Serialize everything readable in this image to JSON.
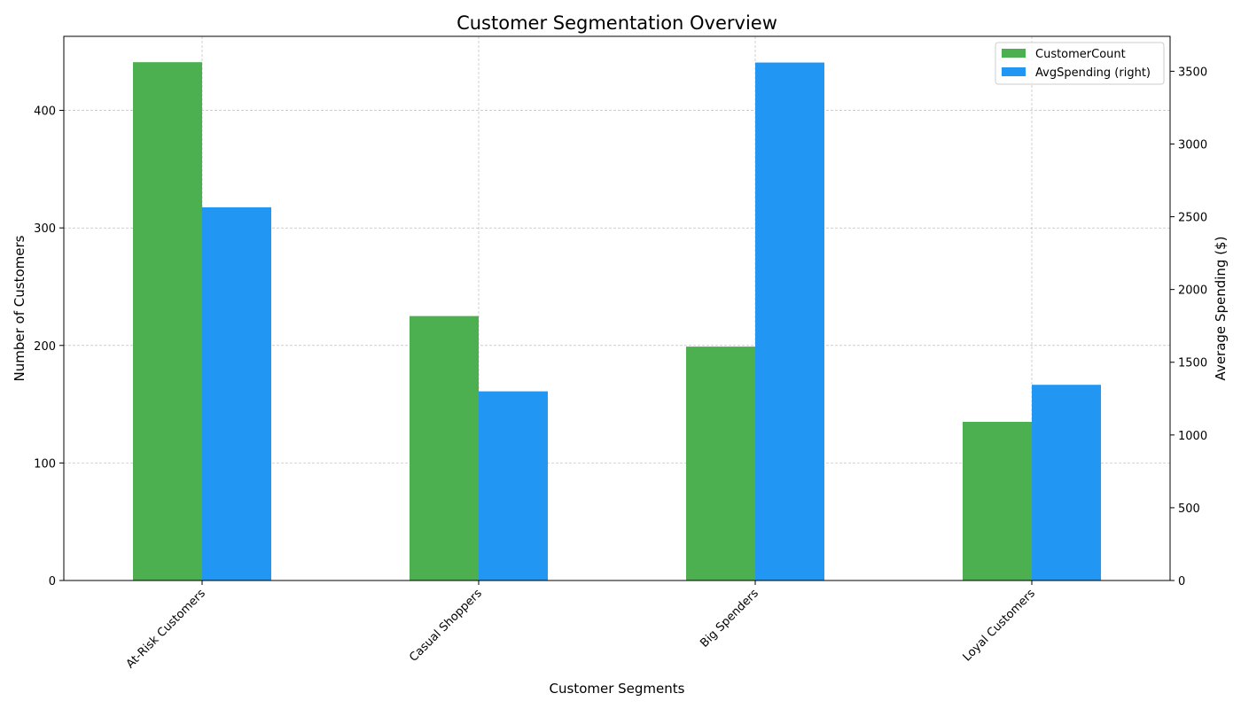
{
  "chart_data": {
    "type": "bar",
    "title": "Customer Segmentation Overview",
    "xlabel": "Customer Segments",
    "ylabel": "Number of Customers",
    "y2label": "Average Spending ($)",
    "categories": [
      "At-Risk Customers",
      "Casual Shoppers",
      "Big Spenders",
      "Loyal Customers"
    ],
    "series": [
      {
        "name": "CustomerCount",
        "axis": "left",
        "color": "#4caf50",
        "values": [
          441,
          225,
          199,
          135
        ]
      },
      {
        "name": "AvgSpending (right)",
        "axis": "right",
        "color": "#2196f3",
        "values": [
          2565,
          1300,
          3560,
          1345
        ]
      }
    ],
    "ylim": [
      0,
      463
    ],
    "y2lim": [
      0,
      3740
    ],
    "yticks": [
      0,
      100,
      200,
      300,
      400
    ],
    "y2ticks": [
      0,
      500,
      1000,
      1500,
      2000,
      2500,
      3000,
      3500
    ],
    "grid": true,
    "legend_position": "top-right"
  }
}
